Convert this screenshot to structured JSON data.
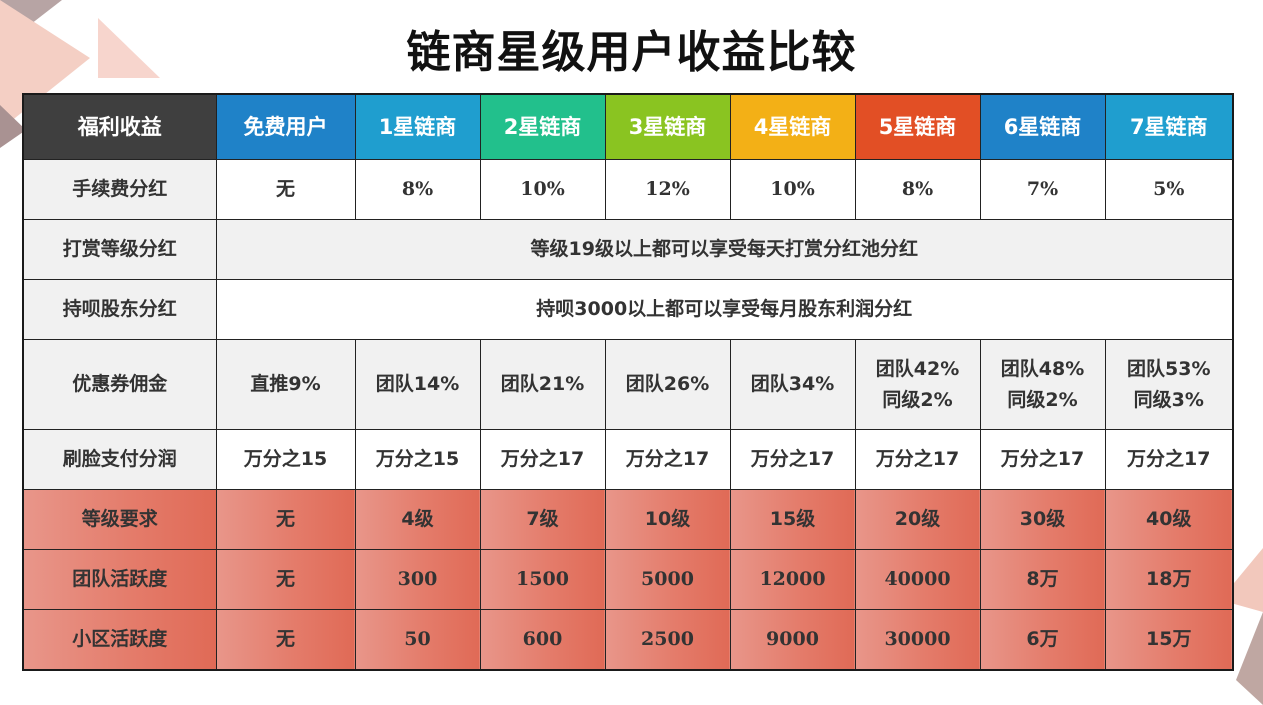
{
  "title": "链商星级用户收益比较",
  "header": {
    "label": "福利收益",
    "columns": [
      "免费用户",
      "1星链商",
      "2星链商",
      "3星链商",
      "4星链商",
      "5星链商",
      "6星链商",
      "7星链商"
    ],
    "colors": {
      "label": "#3f3f3f",
      "columns": [
        "#1f82c8",
        "#1f9ecf",
        "#22c08c",
        "#8ac421",
        "#f3b016",
        "#e24f25",
        "#1f82c8",
        "#1f9ecf"
      ]
    }
  },
  "rows": {
    "fee_dividend": {
      "label": "手续费分红",
      "values": [
        "无",
        "8%",
        "10%",
        "12%",
        "10%",
        "8%",
        "7%",
        "5%"
      ]
    },
    "tip_dividend": {
      "label": "打赏等级分红",
      "text": "等级19级以上都可以享受每天打赏分红池分红"
    },
    "holder_dividend": {
      "label": "持呗股东分红",
      "text": "持呗3000以上都可以享受每月股东利润分红"
    },
    "coupon_commission": {
      "label": "优惠券佣金",
      "values": [
        [
          "直推9%"
        ],
        [
          "团队14%"
        ],
        [
          "团队21%"
        ],
        [
          "团队26%"
        ],
        [
          "团队34%"
        ],
        [
          "团队42%",
          "同级2%"
        ],
        [
          "团队48%",
          "同级2%"
        ],
        [
          "团队53%",
          "同级3%"
        ]
      ]
    },
    "face_pay": {
      "label": "刷脸支付分润",
      "values": [
        "万分之15",
        "万分之15",
        "万分之17",
        "万分之17",
        "万分之17",
        "万分之17",
        "万分之17",
        "万分之17"
      ]
    },
    "level_req": {
      "label": "等级要求",
      "values": [
        "无",
        "4级",
        "7级",
        "10级",
        "15级",
        "20级",
        "30级",
        "40级"
      ]
    },
    "team_activity": {
      "label": "团队活跃度",
      "values": [
        "无",
        "300",
        "1500",
        "5000",
        "12000",
        "40000",
        "8万",
        "18万"
      ]
    },
    "area_activity": {
      "label": "小区活跃度",
      "values": [
        "无",
        "50",
        "600",
        "2500",
        "9000",
        "30000",
        "6万",
        "15万"
      ]
    }
  }
}
